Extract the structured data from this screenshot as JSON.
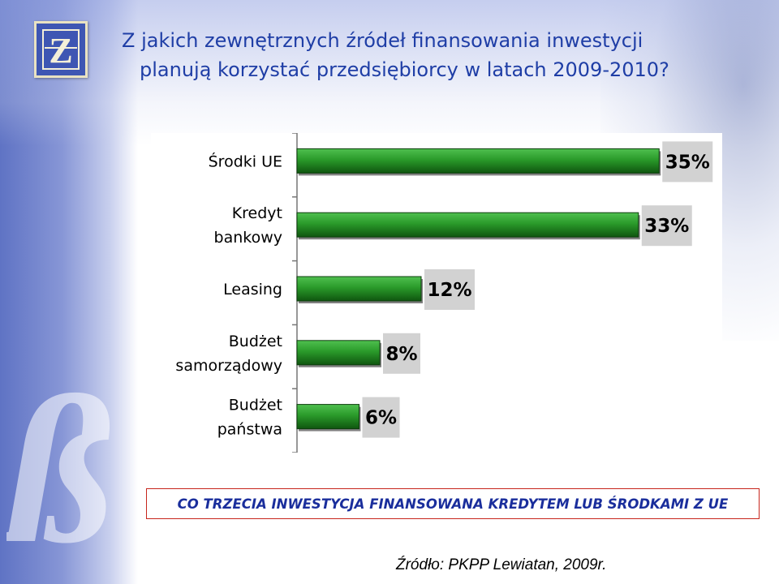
{
  "slide": {
    "title_line1": "Z jakich zewnętrznych źródeł finansowania inwestycji",
    "title_line2": "planują korzystać przedsiębiorcy w latach 2009-2010?",
    "banner": "CO TRZECIA INWESTYCJA FINANSOWANA KREDYTEM LUB ŚRODKAMI Z UE",
    "source": "Źródło: PKPP Lewiatan, 2009r.",
    "logo_icon": "bank-logo-icon",
    "colors": {
      "title": "#1f3ea6",
      "banner_text": "#1a2e9c",
      "banner_border": "#c7261c",
      "bar_fill": "#2e9e2e",
      "bar_dark": "#145c14",
      "value_box": "#d2d2d2"
    }
  },
  "chart_data": {
    "type": "bar",
    "orientation": "horizontal",
    "categories": [
      [
        "Środki UE"
      ],
      [
        "Kredyt",
        "bankowy"
      ],
      [
        "Leasing"
      ],
      [
        "Budżet",
        "samorządowy"
      ],
      [
        "Budżet",
        "państwa"
      ]
    ],
    "values": [
      35,
      33,
      12,
      8,
      6
    ],
    "value_labels": [
      "35%",
      "33%",
      "12%",
      "8%",
      "6%"
    ],
    "xlim": [
      0,
      40
    ],
    "grid": false,
    "legend": "none"
  }
}
